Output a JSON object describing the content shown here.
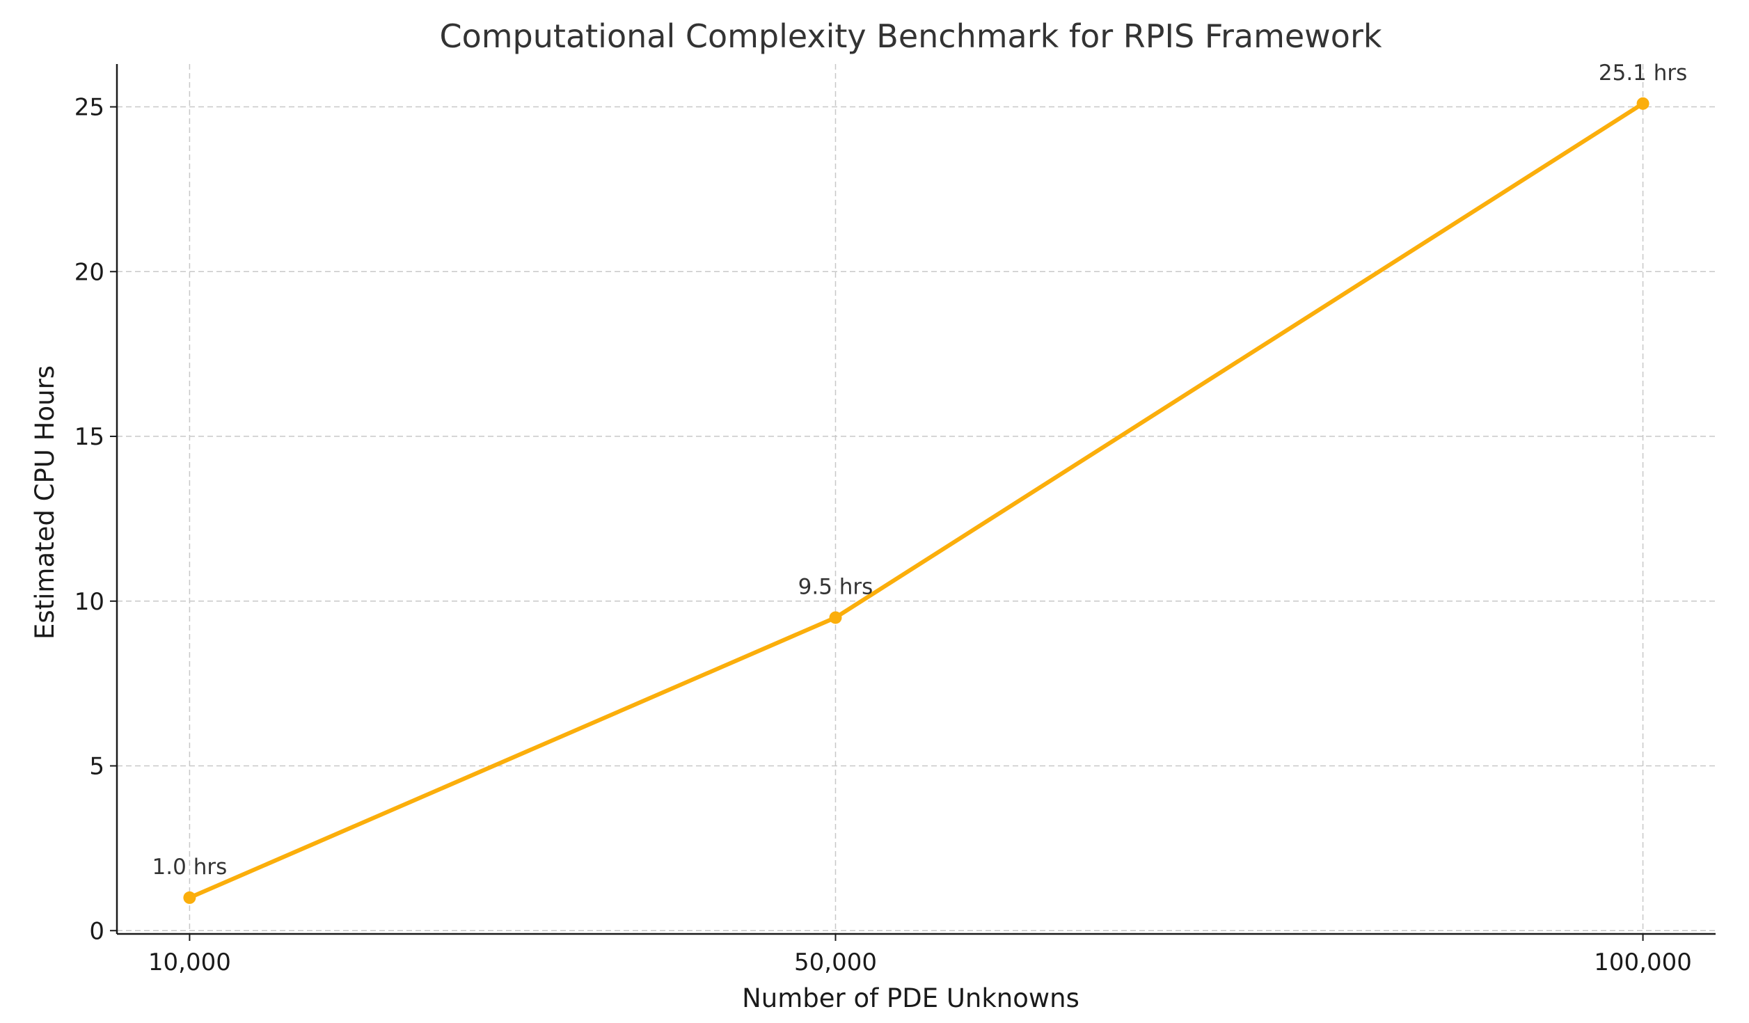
{
  "chart_data": {
    "type": "line",
    "title": "Computational Complexity Benchmark for RPIS Framework",
    "xlabel": "Number of PDE Unknowns",
    "ylabel": "Estimated CPU Hours",
    "categories": [
      "10,000",
      "50,000",
      "100,000"
    ],
    "x": [
      10000,
      50000,
      100000
    ],
    "series": [
      {
        "values": [
          1.0,
          9.5,
          25.1
        ],
        "data_labels": [
          "1.0 hrs",
          "9.5 hrs",
          "25.1 hrs"
        ],
        "color": "#FBAE0B"
      }
    ],
    "yticks": [
      "0",
      "5",
      "10",
      "15",
      "20",
      "25"
    ],
    "ylim": [
      -0.1,
      26.3
    ],
    "xlim": [
      5500,
      104500
    ],
    "grid": true,
    "legend": "none"
  }
}
